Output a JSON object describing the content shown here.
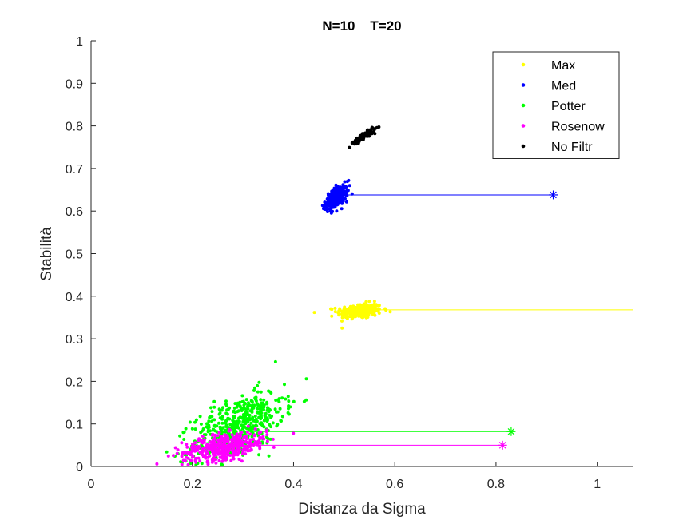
{
  "chart_data": {
    "type": "scatter",
    "title": "N=10    T=20",
    "xlabel": "Distanza da Sigma",
    "ylabel": "Stabilità",
    "xlim": [
      0,
      1.07
    ],
    "ylim": [
      0,
      1
    ],
    "xticks": [
      "0",
      "0.2",
      "0.4",
      "0.6",
      "0.8",
      "1"
    ],
    "yticks": [
      "0",
      "0.1",
      "0.2",
      "0.3",
      "0.4",
      "0.5",
      "0.6",
      "0.7",
      "0.8",
      "0.9",
      "1"
    ],
    "grid": false,
    "legend_position": "top-right",
    "series": [
      {
        "name": "Max",
        "color": "#ffff00",
        "cluster": {
          "cx": 0.53,
          "cy": 0.365,
          "sx": 0.022,
          "sy": 0.009,
          "corr": 0.2,
          "n": 260
        },
        "hline": {
          "y": 0.368,
          "x_from": 0.55,
          "x_to": 1.07
        }
      },
      {
        "name": "Med",
        "color": "#0000ff",
        "cluster": {
          "cx": 0.485,
          "cy": 0.632,
          "sx": 0.011,
          "sy": 0.014,
          "corr": 0.55,
          "n": 260
        },
        "hline": {
          "y": 0.638,
          "x_from": 0.5,
          "x_to": 0.913
        },
        "marker": {
          "x": 0.913,
          "y": 0.638
        }
      },
      {
        "name": "Potter",
        "color": "#00ff00",
        "cluster": {
          "cx": 0.29,
          "cy": 0.095,
          "sx": 0.045,
          "sy": 0.04,
          "corr": 0.55,
          "n": 520
        },
        "hline": {
          "y": 0.082,
          "x_from": 0.3,
          "x_to": 0.83
        },
        "marker": {
          "x": 0.83,
          "y": 0.082
        }
      },
      {
        "name": "Rosenow",
        "color": "#ff00ff",
        "cluster": {
          "cx": 0.265,
          "cy": 0.047,
          "sx": 0.042,
          "sy": 0.017,
          "corr": 0.45,
          "n": 420
        },
        "hline": {
          "y": 0.05,
          "x_from": 0.3,
          "x_to": 0.813
        },
        "marker": {
          "x": 0.813,
          "y": 0.05
        }
      },
      {
        "name": "No Filtr",
        "color": "#000000",
        "cluster": {
          "cx": 0.54,
          "cy": 0.777,
          "sx": 0.01,
          "sy": 0.008,
          "corr": 0.9,
          "n": 160
        }
      }
    ]
  }
}
